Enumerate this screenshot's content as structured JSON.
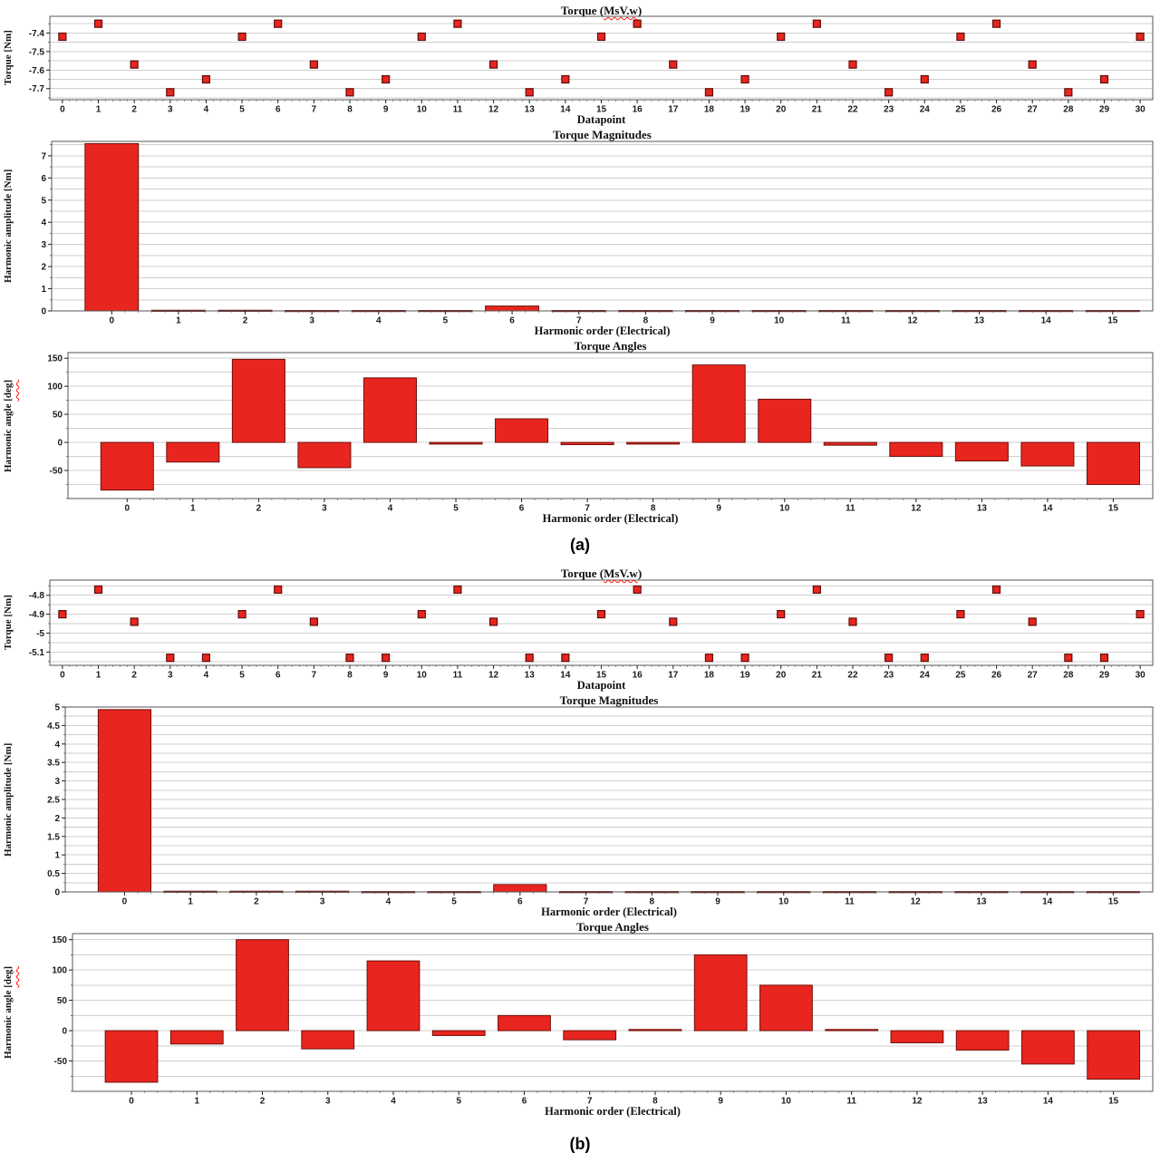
{
  "colors": {
    "bar_fill": "#e8251f",
    "bar_stroke": "#6f110b",
    "marker_fill": "#e8251f",
    "marker_stroke": "#5f0e09",
    "grid": "#cfcfcf",
    "border": "#555555",
    "tick": "#1a1a1a",
    "squiggle": "#ff1a10"
  },
  "section_labels": [
    {
      "id": "a",
      "text": "(a)"
    },
    {
      "id": "b",
      "text": "(b)"
    }
  ],
  "chart_data": [
    {
      "id": "a1",
      "type": "scatter",
      "title_parts": [
        {
          "text": "Torque ("
        },
        {
          "text": "MsV.w",
          "squiggle": true
        },
        {
          "text": ")"
        }
      ],
      "xlabel": "Datapoint",
      "ylabel_parts": [
        {
          "text": "Torque [Nm]"
        }
      ],
      "x": [
        0,
        1,
        2,
        3,
        4,
        5,
        6,
        7,
        8,
        9,
        10,
        11,
        12,
        13,
        14,
        15,
        16,
        17,
        18,
        19,
        20,
        21,
        22,
        23,
        24,
        25,
        26,
        27,
        28,
        29,
        30
      ],
      "y": [
        -7.42,
        -7.35,
        -7.57,
        -7.72,
        -7.65,
        -7.42,
        -7.35,
        -7.57,
        -7.72,
        -7.65,
        -7.42,
        -7.35,
        -7.57,
        -7.72,
        -7.65,
        -7.42,
        -7.35,
        -7.57,
        -7.72,
        -7.65,
        -7.42,
        -7.35,
        -7.57,
        -7.72,
        -7.65,
        -7.42,
        -7.35,
        -7.57,
        -7.72,
        -7.65,
        -7.42
      ],
      "xtick_labels": [
        "0",
        "1",
        "2",
        "3",
        "4",
        "5",
        "6",
        "7",
        "8",
        "9",
        "10",
        "11",
        "12",
        "13",
        "14",
        "15",
        "16",
        "17",
        "18",
        "19",
        "20",
        "21",
        "22",
        "23",
        "24",
        "25",
        "26",
        "27",
        "28",
        "29",
        "30"
      ],
      "xlim": [
        -0.35,
        30.35
      ],
      "ylim": [
        -7.76,
        -7.31
      ],
      "yticks": [
        {
          "v": -7.4,
          "label": "-7.4"
        },
        {
          "v": -7.5,
          "label": "-7.5"
        },
        {
          "v": -7.6,
          "label": "-7.6"
        },
        {
          "v": -7.7,
          "label": "-7.7"
        }
      ],
      "grid_step": 0.05
    },
    {
      "id": "a2",
      "type": "bar",
      "title_parts": [
        {
          "text": "Torque Magnitudes"
        }
      ],
      "xlabel": "Harmonic order (Electrical)",
      "ylabel_parts": [
        {
          "text": "Harmonic amplitude [Nm]"
        }
      ],
      "x": [
        0,
        1,
        2,
        3,
        4,
        5,
        6,
        7,
        8,
        9,
        10,
        11,
        12,
        13,
        14,
        15
      ],
      "y": [
        7.55,
        0.03,
        0.03,
        0.02,
        0.02,
        0.02,
        0.22,
        0.02,
        0.02,
        0.02,
        0.02,
        0.02,
        0.02,
        0.02,
        0.02,
        0.02
      ],
      "xtick_labels": [
        "0",
        "1",
        "2",
        "3",
        "4",
        "5",
        "6",
        "7",
        "8",
        "9",
        "10",
        "11",
        "12",
        "13",
        "14",
        "15"
      ],
      "xlim": [
        -0.9,
        15.6
      ],
      "ylim": [
        0,
        7.65
      ],
      "yticks": [
        {
          "v": 0,
          "label": "0"
        },
        {
          "v": 1,
          "label": "1"
        },
        {
          "v": 2,
          "label": "2"
        },
        {
          "v": 3,
          "label": "3"
        },
        {
          "v": 4,
          "label": "4"
        },
        {
          "v": 5,
          "label": "5"
        },
        {
          "v": 6,
          "label": "6"
        },
        {
          "v": 7,
          "label": "7"
        }
      ],
      "grid_step": 0.5,
      "bar_width": 0.8
    },
    {
      "id": "a3",
      "type": "bar",
      "title_parts": [
        {
          "text": "Torque Angles"
        }
      ],
      "xlabel": "Harmonic order (Electrical)",
      "ylabel_parts": [
        {
          "text": "Harmonic angle "
        },
        {
          "text": "[deg]",
          "squiggle": true
        }
      ],
      "x": [
        0,
        1,
        2,
        3,
        4,
        5,
        6,
        7,
        8,
        9,
        10,
        11,
        12,
        13,
        14,
        15
      ],
      "y": [
        -85,
        -35,
        148,
        -45,
        115,
        -3,
        42,
        -4,
        -3,
        138,
        77,
        -5,
        -25,
        -33,
        -42,
        -75
      ],
      "xtick_labels": [
        "0",
        "1",
        "2",
        "3",
        "4",
        "5",
        "6",
        "7",
        "8",
        "9",
        "10",
        "11",
        "12",
        "13",
        "14",
        "15"
      ],
      "xlim": [
        -0.9,
        15.6
      ],
      "ylim": [
        -100,
        160
      ],
      "yticks": [
        {
          "v": -50,
          "label": "-50"
        },
        {
          "v": 0,
          "label": "0"
        },
        {
          "v": 50,
          "label": "50"
        },
        {
          "v": 100,
          "label": "100"
        },
        {
          "v": 150,
          "label": "150"
        }
      ],
      "grid_step": 25,
      "bar_width": 0.8
    },
    {
      "id": "b1",
      "type": "scatter",
      "title_parts": [
        {
          "text": "Torque ("
        },
        {
          "text": "MsV.w",
          "squiggle": true
        },
        {
          "text": ")"
        }
      ],
      "xlabel": "Datapoint",
      "ylabel_parts": [
        {
          "text": "Torque [Nm]"
        }
      ],
      "x": [
        0,
        1,
        2,
        3,
        4,
        5,
        6,
        7,
        8,
        9,
        10,
        11,
        12,
        13,
        14,
        15,
        16,
        17,
        18,
        19,
        20,
        21,
        22,
        23,
        24,
        25,
        26,
        27,
        28,
        29,
        30
      ],
      "y": [
        -4.9,
        -4.77,
        -4.94,
        -5.13,
        -5.13,
        -4.9,
        -4.77,
        -4.94,
        -5.13,
        -5.13,
        -4.9,
        -4.77,
        -4.94,
        -5.13,
        -5.13,
        -4.9,
        -4.77,
        -4.94,
        -5.13,
        -5.13,
        -4.9,
        -4.77,
        -4.94,
        -5.13,
        -5.13,
        -4.9,
        -4.77,
        -4.94,
        -5.13,
        -5.13,
        -4.9
      ],
      "xtick_labels": [
        "0",
        "1",
        "2",
        "3",
        "4",
        "5",
        "6",
        "7",
        "8",
        "9",
        "10",
        "11",
        "12",
        "13",
        "14",
        "15",
        "16",
        "17",
        "18",
        "19",
        "20",
        "21",
        "22",
        "23",
        "24",
        "25",
        "26",
        "27",
        "28",
        "29",
        "30"
      ],
      "xlim": [
        -0.35,
        30.35
      ],
      "ylim": [
        -5.17,
        -4.72
      ],
      "yticks": [
        {
          "v": -4.8,
          "label": "-4.8"
        },
        {
          "v": -4.9,
          "label": "-4.9"
        },
        {
          "v": -5,
          "label": "-5"
        },
        {
          "v": -5.1,
          "label": "-5.1"
        }
      ],
      "grid_step": 0.05
    },
    {
      "id": "b2",
      "type": "bar",
      "title_parts": [
        {
          "text": "Torque Magnitudes"
        }
      ],
      "xlabel": "Harmonic order (Electrical)",
      "ylabel_parts": [
        {
          "text": "Harmonic amplitude [Nm]"
        }
      ],
      "x": [
        0,
        1,
        2,
        3,
        4,
        5,
        6,
        7,
        8,
        9,
        10,
        11,
        12,
        13,
        14,
        15
      ],
      "y": [
        4.93,
        0.02,
        0.02,
        0.02,
        0.01,
        0.01,
        0.2,
        0.01,
        0.01,
        0.01,
        0.01,
        0.01,
        0.01,
        0.01,
        0.01,
        0.01
      ],
      "xtick_labels": [
        "0",
        "1",
        "2",
        "3",
        "4",
        "5",
        "6",
        "7",
        "8",
        "9",
        "10",
        "11",
        "12",
        "13",
        "14",
        "15"
      ],
      "xlim": [
        -0.9,
        15.6
      ],
      "ylim": [
        0,
        5.0
      ],
      "yticks": [
        {
          "v": 0,
          "label": "0"
        },
        {
          "v": 0.5,
          "label": "0.5"
        },
        {
          "v": 1,
          "label": "1"
        },
        {
          "v": 1.5,
          "label": "1.5"
        },
        {
          "v": 2,
          "label": "2"
        },
        {
          "v": 2.5,
          "label": "2.5"
        },
        {
          "v": 3,
          "label": "3"
        },
        {
          "v": 3.5,
          "label": "3.5"
        },
        {
          "v": 4,
          "label": "4"
        },
        {
          "v": 4.5,
          "label": "4.5"
        },
        {
          "v": 5,
          "label": "5"
        }
      ],
      "grid_step": 0.25,
      "bar_width": 0.8
    },
    {
      "id": "b3",
      "type": "bar",
      "title_parts": [
        {
          "text": "Torque Angles"
        }
      ],
      "xlabel": "Harmonic order (Electrical)",
      "ylabel_parts": [
        {
          "text": "Harmonic angle "
        },
        {
          "text": "[deg]",
          "squiggle": true
        }
      ],
      "x": [
        0,
        1,
        2,
        3,
        4,
        5,
        6,
        7,
        8,
        9,
        10,
        11,
        12,
        13,
        14,
        15
      ],
      "y": [
        -85,
        -22,
        150,
        -30,
        115,
        -8,
        25,
        -15,
        2,
        125,
        75,
        2,
        -20,
        -32,
        -55,
        -80
      ],
      "xtick_labels": [
        "0",
        "1",
        "2",
        "3",
        "4",
        "5",
        "6",
        "7",
        "8",
        "9",
        "10",
        "11",
        "12",
        "13",
        "14",
        "15"
      ],
      "xlim": [
        -0.9,
        15.6
      ],
      "ylim": [
        -100,
        160
      ],
      "yticks": [
        {
          "v": -50,
          "label": "-50"
        },
        {
          "v": 0,
          "label": "0"
        },
        {
          "v": 50,
          "label": "50"
        },
        {
          "v": 100,
          "label": "100"
        },
        {
          "v": 150,
          "label": "150"
        }
      ],
      "grid_step": 25,
      "bar_width": 0.8
    }
  ]
}
